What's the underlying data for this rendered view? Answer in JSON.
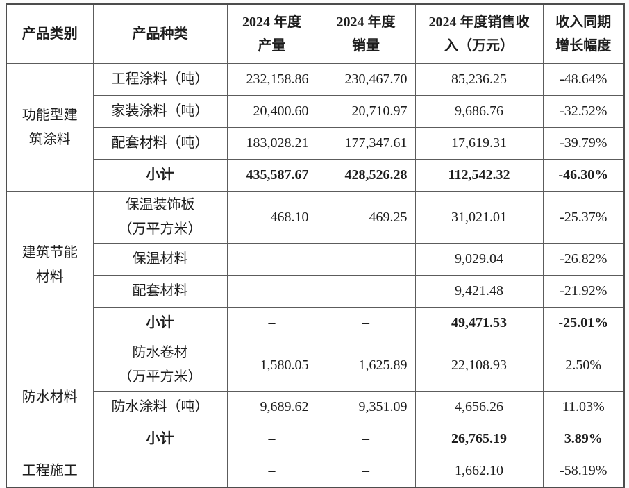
{
  "table": {
    "headers": [
      "产品类别",
      "产品种类",
      "2024 年度\n产量",
      "2024 年度\n销量",
      "2024 年度销售收\n入（万元）",
      "收入同期\n增长幅度"
    ],
    "groups": [
      {
        "category": "功能型建\n筑涂料",
        "rows": [
          {
            "type": "工程涂料（吨）",
            "production": "232,158.86",
            "sales": "230,467.70",
            "revenue": "85,236.25",
            "growth": "-48.64%",
            "bold": false
          },
          {
            "type": "家装涂料（吨）",
            "production": "20,400.60",
            "sales": "20,710.97",
            "revenue": "9,686.76",
            "growth": "-32.52%",
            "bold": false
          },
          {
            "type": "配套材料（吨）",
            "production": "183,028.21",
            "sales": "177,347.61",
            "revenue": "17,619.31",
            "growth": "-39.79%",
            "bold": false
          },
          {
            "type": "小计",
            "production": "435,587.67",
            "sales": "428,526.28",
            "revenue": "112,542.32",
            "growth": "-46.30%",
            "bold": true
          }
        ]
      },
      {
        "category": "建筑节能\n材料",
        "rows": [
          {
            "type": "保温装饰板\n（万平方米）",
            "production": "468.10",
            "sales": "469.25",
            "revenue": "31,021.01",
            "growth": "-25.37%",
            "bold": false
          },
          {
            "type": "保温材料",
            "production": "–",
            "sales": "–",
            "revenue": "9,029.04",
            "growth": "-26.82%",
            "bold": false
          },
          {
            "type": "配套材料",
            "production": "–",
            "sales": "–",
            "revenue": "9,421.48",
            "growth": "-21.92%",
            "bold": false
          },
          {
            "type": "小计",
            "production": "–",
            "sales": "–",
            "revenue": "49,471.53",
            "growth": "-25.01%",
            "bold": true
          }
        ]
      },
      {
        "category": "防水材料",
        "rows": [
          {
            "type": "防水卷材\n（万平方米）",
            "production": "1,580.05",
            "sales": "1,625.89",
            "revenue": "22,108.93",
            "growth": "2.50%",
            "bold": false
          },
          {
            "type": "防水涂料（吨）",
            "production": "9,689.62",
            "sales": "9,351.09",
            "revenue": "4,656.26",
            "growth": "11.03%",
            "bold": false
          },
          {
            "type": "小计",
            "production": "–",
            "sales": "–",
            "revenue": "26,765.19",
            "growth": "3.89%",
            "bold": true
          }
        ]
      },
      {
        "category": "工程施工",
        "rows": [
          {
            "type": "",
            "production": "–",
            "sales": "–",
            "revenue": "1,662.10",
            "growth": "-58.19%",
            "bold": false
          }
        ]
      }
    ],
    "empty_value": "–"
  }
}
